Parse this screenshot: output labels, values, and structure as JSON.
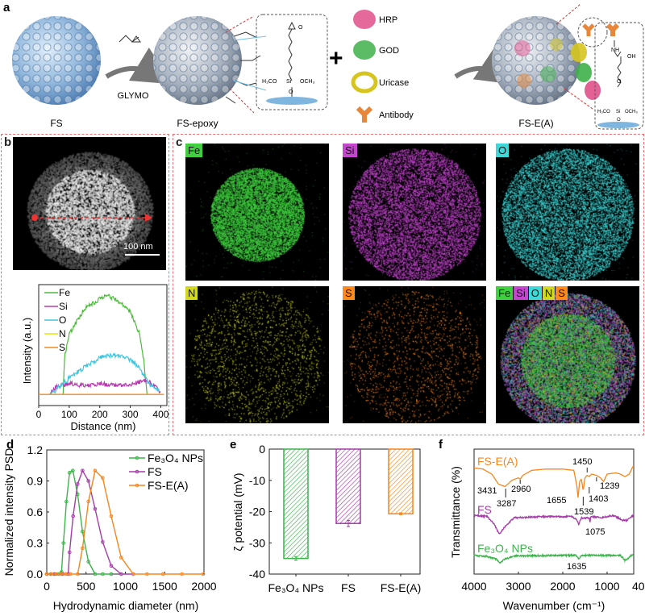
{
  "panel_labels": {
    "a": "a",
    "b": "b",
    "c": "c",
    "d": "d",
    "e": "e",
    "f": "f"
  },
  "panel_a": {
    "reagent": "GLYMO",
    "plus": "+",
    "structure_epoxy": {
      "o1": "O",
      "left": "H₃CO",
      "si": "Si",
      "right": "OCH₃",
      "o2": "O"
    },
    "structure_antibody": {
      "nh": "NH",
      "oh": "OH",
      "o": "O",
      "left": "H₃CO",
      "si": "Si",
      "right": "OCH₃",
      "o2": "O"
    },
    "labels": {
      "fs": "FS",
      "fs_epoxy": "FS-epoxy",
      "fs_ea": "FS-E(A)"
    },
    "biomolecules": [
      {
        "name": "HRP",
        "color": "#e0508a"
      },
      {
        "name": "GOD",
        "color": "#3fb04a"
      },
      {
        "name": "Uricase",
        "color": "#d6c51e"
      },
      {
        "name": "Antibody",
        "color": "#e8873a"
      }
    ]
  },
  "panel_b": {
    "scale_bar": "100 nm",
    "line_profile": {
      "type": "line",
      "xlabel": "Distance (nm)",
      "ylabel": "Intensity (a.u.)",
      "xlim": [
        0,
        420
      ],
      "xticks": [
        "0",
        "100",
        "200",
        "300",
        "400"
      ],
      "series": [
        {
          "name": "Fe",
          "color": "#4cbb3a",
          "points": [
            [
              0,
              0.1
            ],
            [
              80,
              0.1
            ],
            [
              85,
              0.45
            ],
            [
              100,
              0.65
            ],
            [
              150,
              0.88
            ],
            [
              200,
              0.97
            ],
            [
              225,
              1.0
            ],
            [
              260,
              0.95
            ],
            [
              300,
              0.85
            ],
            [
              330,
              0.65
            ],
            [
              345,
              0.4
            ],
            [
              355,
              0.1
            ],
            [
              410,
              0.1
            ]
          ]
        },
        {
          "name": "Si",
          "color": "#b83ab0",
          "points": [
            [
              35,
              0.1
            ],
            [
              60,
              0.18
            ],
            [
              100,
              0.2
            ],
            [
              150,
              0.18
            ],
            [
              200,
              0.2
            ],
            [
              250,
              0.18
            ],
            [
              300,
              0.19
            ],
            [
              350,
              0.23
            ],
            [
              380,
              0.18
            ],
            [
              400,
              0.12
            ]
          ]
        },
        {
          "name": "O",
          "color": "#3fc7e0",
          "points": [
            [
              35,
              0.1
            ],
            [
              60,
              0.15
            ],
            [
              100,
              0.25
            ],
            [
              150,
              0.35
            ],
            [
              210,
              0.45
            ],
            [
              250,
              0.46
            ],
            [
              300,
              0.42
            ],
            [
              330,
              0.35
            ],
            [
              360,
              0.2
            ],
            [
              400,
              0.12
            ]
          ]
        },
        {
          "name": "N",
          "color": "#f2e000",
          "points": [
            [
              0,
              0.1
            ],
            [
              410,
              0.1
            ]
          ]
        },
        {
          "name": "S",
          "color": "#f58a1f",
          "points": [
            [
              0,
              0.102
            ],
            [
              410,
              0.102
            ]
          ]
        }
      ]
    }
  },
  "panel_c": {
    "maps": [
      {
        "label": "Fe",
        "color": "#3fcf3f"
      },
      {
        "label": "Si",
        "color": "#c545d0"
      },
      {
        "label": "O",
        "color": "#3ed8d8"
      },
      {
        "label": "N",
        "color": "#d2d820"
      },
      {
        "label": "S",
        "color": "#ff8a1a"
      }
    ],
    "overlay_labels": [
      "Fe",
      "Si",
      "O",
      "N",
      "S"
    ]
  },
  "chart_data": [
    {
      "panel": "d",
      "type": "line",
      "xlabel": "Hydrodynamic diameter (nm)",
      "ylabel": "Normalized intensity PSD",
      "xlim": [
        0,
        2000
      ],
      "ylim": [
        0,
        1.2
      ],
      "xticks": [
        "0",
        "500",
        "1000",
        "1500",
        "2000"
      ],
      "yticks": [
        "0.0",
        "0.3",
        "0.6",
        "0.9",
        "1.2"
      ],
      "legend": "top-right",
      "series": [
        {
          "name": "Fe₃O₄ NPs",
          "color": "#3cb44b",
          "points": [
            [
              0,
              0
            ],
            [
              50,
              0
            ],
            [
              100,
              0
            ],
            [
              150,
              0
            ],
            [
              188,
              0.02
            ],
            [
              212,
              0.3
            ],
            [
              250,
              0.7
            ],
            [
              290,
              0.98
            ],
            [
              332,
              1.0
            ],
            [
              393,
              0.77
            ],
            [
              455,
              0.41
            ],
            [
              530,
              0.12
            ],
            [
              615,
              0
            ],
            [
              711,
              0
            ],
            [
              820,
              0
            ]
          ]
        },
        {
          "name": "FS",
          "color": "#a63ca8",
          "points": [
            [
              0,
              0
            ],
            [
              100,
              0
            ],
            [
              200,
              0
            ],
            [
              273,
              0
            ],
            [
              290,
              0.21
            ],
            [
              335,
              0.56
            ],
            [
              393,
              0.87
            ],
            [
              455,
              1.0
            ],
            [
              530,
              0.9
            ],
            [
              615,
              0.63
            ],
            [
              711,
              0.31
            ],
            [
              820,
              0.08
            ],
            [
              947,
              0
            ],
            [
              1100,
              0
            ]
          ]
        },
        {
          "name": "FS-E(A)",
          "color": "#f7861c",
          "points": [
            [
              0,
              0
            ],
            [
              60,
              0
            ],
            [
              120,
              0
            ],
            [
              180,
              0
            ],
            [
              240,
              0
            ],
            [
              300,
              0
            ],
            [
              393,
              0
            ],
            [
              455,
              0.25
            ],
            [
              530,
              0.7
            ],
            [
              615,
              1.0
            ],
            [
              711,
              0.93
            ],
            [
              820,
              0.56
            ],
            [
              947,
              0.16
            ],
            [
              1100,
              0
            ],
            [
              1275,
              0
            ],
            [
              1480,
              0
            ],
            [
              1720,
              0
            ],
            [
              1990,
              0
            ]
          ]
        }
      ]
    },
    {
      "panel": "e",
      "type": "bar",
      "ylabel": "ζ potential (mV)",
      "ylim": [
        -40,
        0
      ],
      "yticks": [
        "0",
        "-10",
        "-20",
        "-30",
        "-40"
      ],
      "categories": [
        "Fe₃O₄ NPs",
        "FS",
        "FS-E(A)"
      ],
      "values": [
        -35.0,
        -23.8,
        -20.7
      ],
      "errors": [
        0.6,
        1.0,
        0.3
      ],
      "colors": [
        "#3cb44b",
        "#a63ca8",
        "#f7861c"
      ]
    },
    {
      "panel": "f",
      "type": "line",
      "xlabel": "Wavenumber (cm⁻¹)",
      "ylabel": "Transmittance (%)",
      "xlim": [
        4000,
        400
      ],
      "xticks": [
        "4000",
        "3000",
        "2000",
        "1000",
        "400"
      ],
      "series": [
        {
          "name": "FS-E(A)",
          "color": "#f7861c",
          "points": [
            [
              4000,
              85
            ],
            [
              3800,
              84
            ],
            [
              3600,
              80
            ],
            [
              3450,
              72
            ],
            [
              3300,
              70
            ],
            [
              3150,
              75
            ],
            [
              3000,
              77
            ],
            [
              2960,
              76
            ],
            [
              2900,
              79
            ],
            [
              2700,
              83
            ],
            [
              2400,
              84
            ],
            [
              2000,
              84
            ],
            [
              1750,
              83
            ],
            [
              1680,
              70
            ],
            [
              1655,
              61
            ],
            [
              1620,
              74
            ],
            [
              1580,
              76
            ],
            [
              1540,
              67
            ],
            [
              1500,
              77
            ],
            [
              1450,
              79
            ],
            [
              1403,
              78
            ],
            [
              1350,
              80
            ],
            [
              1239,
              79
            ],
            [
              1150,
              77
            ],
            [
              1080,
              74
            ],
            [
              1000,
              80
            ],
            [
              800,
              81
            ],
            [
              700,
              80
            ],
            [
              600,
              78
            ],
            [
              500,
              80
            ],
            [
              420,
              86
            ],
            [
              400,
              86
            ]
          ]
        },
        {
          "name": "FS",
          "color": "#a63ca8",
          "points": [
            [
              4000,
              47
            ],
            [
              3700,
              46
            ],
            [
              3550,
              40
            ],
            [
              3430,
              32
            ],
            [
              3300,
              38
            ],
            [
              3100,
              45
            ],
            [
              2500,
              46
            ],
            [
              1800,
              46
            ],
            [
              1700,
              44
            ],
            [
              1640,
              40
            ],
            [
              1580,
              45
            ],
            [
              1400,
              45
            ],
            [
              1385,
              41
            ],
            [
              1370,
              46
            ],
            [
              1100,
              45
            ],
            [
              1000,
              46
            ],
            [
              850,
              47
            ],
            [
              650,
              43
            ],
            [
              550,
              43
            ],
            [
              450,
              46
            ],
            [
              400,
              47
            ]
          ]
        },
        {
          "name": "Fe₃O₄ NPs",
          "color": "#3cb44b",
          "points": [
            [
              4000,
              15
            ],
            [
              3700,
              14
            ],
            [
              3500,
              12
            ],
            [
              3420,
              9
            ],
            [
              3300,
              12
            ],
            [
              3100,
              14.5
            ],
            [
              2000,
              15
            ],
            [
              1700,
              15
            ],
            [
              1635,
              12
            ],
            [
              1580,
              15
            ],
            [
              1000,
              15
            ],
            [
              700,
              15
            ],
            [
              600,
              11
            ],
            [
              550,
              12
            ],
            [
              450,
              15
            ],
            [
              400,
              15
            ]
          ]
        }
      ],
      "annotations": [
        "3431",
        "3287",
        "2960",
        "1450",
        "1655",
        "1539",
        "1403",
        "1239",
        "1075",
        "1635"
      ]
    }
  ]
}
